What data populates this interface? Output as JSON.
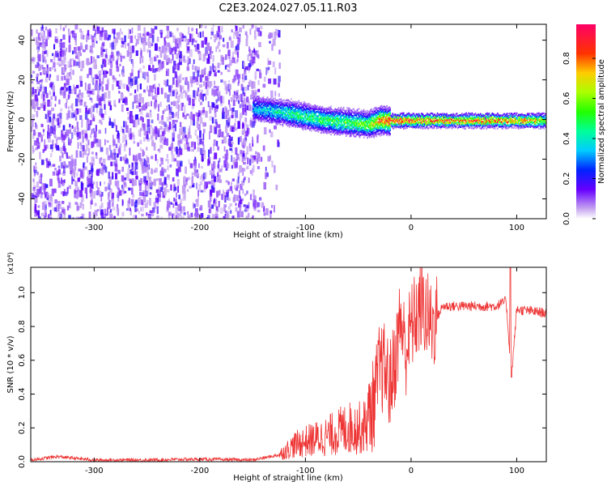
{
  "title": "C2E3.2024.027.05.11.R03",
  "colorbar": {
    "label": "Normalized spectral amplitude",
    "ticks": [
      "0.0",
      "0.2",
      "0.4",
      "0.6",
      "0.8"
    ]
  },
  "chart_data": [
    {
      "type": "heatmap",
      "xlabel": "Height of straight line (km)",
      "ylabel": "Frequency (Hz)",
      "xlim": [
        -360,
        128
      ],
      "ylim": [
        -50,
        48
      ],
      "xticks": [
        "-300",
        "-200",
        "-100",
        "0",
        "100"
      ],
      "yticks": [
        "-40",
        "-20",
        "0",
        "20",
        "40"
      ],
      "noise_region_x": [
        -360,
        -145
      ],
      "signal_trace": {
        "x": [
          -150,
          -120,
          -100,
          -80,
          -60,
          -40,
          -30,
          -20,
          0,
          40,
          80,
          128
        ],
        "freq": [
          6,
          4,
          2,
          0,
          -1,
          -2,
          0,
          0,
          0,
          0,
          0,
          0
        ],
        "peak_amplitude": [
          0.35,
          0.45,
          0.5,
          0.5,
          0.55,
          0.6,
          0.8,
          0.9,
          0.9,
          0.85,
          0.85,
          0.7
        ]
      }
    },
    {
      "type": "line",
      "xlabel": "Height of straight line (km)",
      "ylabel": "SNR (10 * v/v)",
      "scale_label": "(x10⁴)",
      "xlim": [
        -360,
        128
      ],
      "ylim": [
        0,
        1.15
      ],
      "xticks": [
        "-300",
        "-200",
        "-100",
        "0",
        "100"
      ],
      "yticks": [
        "0.0",
        "0.2",
        "0.4",
        "0.6",
        "0.8",
        "1.0"
      ],
      "series": [
        {
          "color": "#ee3333",
          "x": [
            -360,
            -335,
            -300,
            -250,
            -200,
            -150,
            -125,
            -110,
            -100,
            -80,
            -60,
            -45,
            -35,
            -30,
            -25,
            -20,
            -15,
            -10,
            -5,
            0,
            10,
            20,
            30,
            50,
            80,
            90,
            95,
            100,
            128
          ],
          "y": [
            0.01,
            0.03,
            0.01,
            0.01,
            0.015,
            0.01,
            0.04,
            0.1,
            0.12,
            0.15,
            0.2,
            0.2,
            0.35,
            0.55,
            0.55,
            0.45,
            0.6,
            0.85,
            0.65,
            0.8,
            0.92,
            0.8,
            0.92,
            0.92,
            0.92,
            0.95,
            0.5,
            0.9,
            0.88
          ]
        }
      ]
    }
  ]
}
